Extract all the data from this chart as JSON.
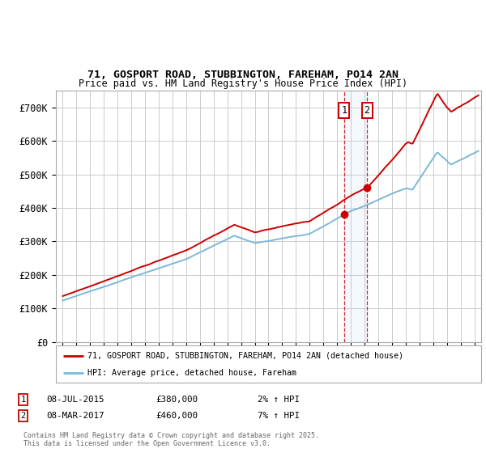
{
  "title": "71, GOSPORT ROAD, STUBBINGTON, FAREHAM, PO14 2AN",
  "subtitle": "Price paid vs. HM Land Registry's House Price Index (HPI)",
  "ylim": [
    0,
    750000
  ],
  "yticks": [
    0,
    100000,
    200000,
    300000,
    400000,
    500000,
    600000,
    700000
  ],
  "ytick_labels": [
    "£0",
    "£100K",
    "£200K",
    "£300K",
    "£400K",
    "£500K",
    "£600K",
    "£700K"
  ],
  "hpi_color": "#7db8d8",
  "price_color": "#cc0000",
  "bg_color": "#ffffff",
  "grid_color": "#cccccc",
  "sale1_date": 2015.52,
  "sale1_price": 380000,
  "sale2_date": 2017.18,
  "sale2_price": 460000,
  "legend_label1": "71, GOSPORT ROAD, STUBBINGTON, FAREHAM, PO14 2AN (detached house)",
  "legend_label2": "HPI: Average price, detached house, Fareham",
  "footer": "Contains HM Land Registry data © Crown copyright and database right 2025.\nThis data is licensed under the Open Government Licence v3.0."
}
